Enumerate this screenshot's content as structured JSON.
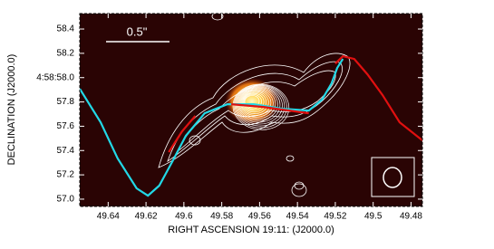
{
  "chart_data": {
    "type": "line",
    "title": "0.5\"",
    "x_label": "RIGHT ASCENSION 19:11: (J2000.0)",
    "y_label": "DECLINATION (J2000.0)",
    "xlim": [
      49.655,
      49.474
    ],
    "ylim": [
      56.94,
      58.527
    ],
    "xticks": [
      49.64,
      49.62,
      49.6,
      49.58,
      49.56,
      49.54,
      49.52,
      49.5,
      49.48
    ],
    "yticks": [
      {
        "value": 57,
        "label": "57.0"
      },
      57.2,
      57.4,
      57.6,
      57.8,
      {
        "value": 58,
        "label": "4:58:58.0"
      },
      58.2,
      58.4
    ],
    "series": [
      {
        "color": "#22d8e6",
        "x": [
          49.655,
          49.644,
          49.635,
          49.625,
          49.619,
          49.613,
          49.606,
          49.599,
          49.589,
          49.577,
          49.563,
          49.548,
          49.534,
          49.527,
          49.522,
          49.519,
          49.516
        ],
        "values": [
          57.908,
          57.633,
          57.335,
          57.089,
          57.029,
          57.111,
          57.312,
          57.521,
          57.707,
          57.781,
          57.781,
          57.744,
          57.729,
          57.819,
          57.953,
          58.079,
          58.154
        ]
      },
      {
        "color": "#e01010",
        "x": [
          49.608,
          49.601,
          49.594,
          49.585,
          49.575,
          49.558,
          49.534,
          49.525,
          49.52,
          49.516,
          49.51,
          49.503,
          49.495,
          49.486,
          49.474
        ],
        "values": [
          57.387,
          57.558,
          57.685,
          null,
          57.781,
          57.759,
          57.707,
          null,
          58.116,
          58.176,
          58.154,
          58.027,
          57.856,
          57.632,
          57.484
        ]
      }
    ]
  }
}
